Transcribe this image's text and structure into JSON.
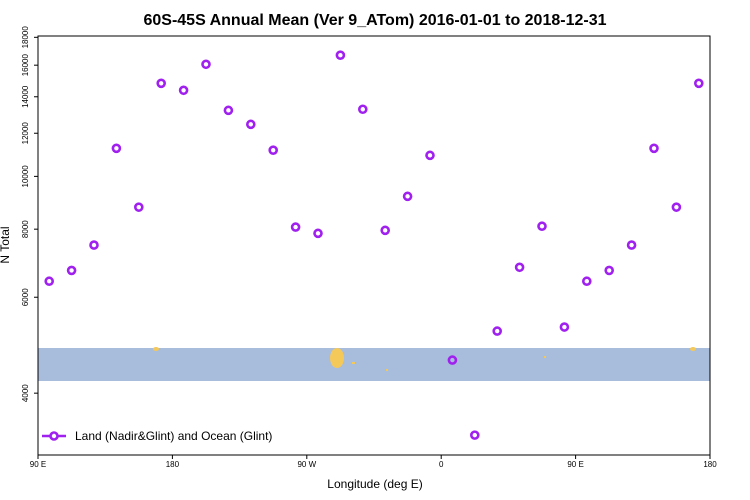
{
  "chart_data": {
    "type": "scatter",
    "title": "60S-45S Annual Mean (Ver 9_ATom)   2016-01-01 to 2018-12-31",
    "x_label": "Longitude (deg E)",
    "y_label": "N Total",
    "x": [
      97.5,
      112.5,
      127.5,
      142.5,
      157.5,
      172.5,
      187.5,
      202.5,
      217.5,
      232.5,
      247.5,
      262.5,
      277.5,
      292.5,
      307.5,
      322.5,
      337.5,
      352.5,
      367.5,
      382.5,
      397.5,
      412.5,
      427.5,
      442.5,
      457.5,
      472.5,
      487.5,
      502.5,
      517.5,
      532.5
    ],
    "series": [
      {
        "name": "Land (Nadir&Glint) and Ocean (Glint)",
        "color": "#a020f0",
        "values": [
          6420,
          6720,
          7480,
          11260,
          8780,
          14820,
          14390,
          16060,
          13220,
          12460,
          11170,
          8070,
          7860,
          16690,
          13280,
          7960,
          9190,
          10930,
          4600,
          3350,
          5200,
          6810,
          8100,
          5290,
          6420,
          6720,
          7480,
          11260,
          8780,
          14820
        ]
      }
    ],
    "xlim": [
      90,
      540
    ],
    "xticks": [
      {
        "value": 90,
        "label": "90 E"
      },
      {
        "value": 180,
        "label": "180"
      },
      {
        "value": 270,
        "label": "90 W"
      },
      {
        "value": 360,
        "label": "0"
      },
      {
        "value": 450,
        "label": "90 E"
      },
      {
        "value": 540,
        "label": "180"
      }
    ],
    "ylim": [
      3080,
      18100
    ],
    "yticks": [
      4000,
      6000,
      8000,
      10000,
      12000,
      14000,
      16000,
      18000
    ],
    "y_log": true,
    "legend": "lower left"
  }
}
